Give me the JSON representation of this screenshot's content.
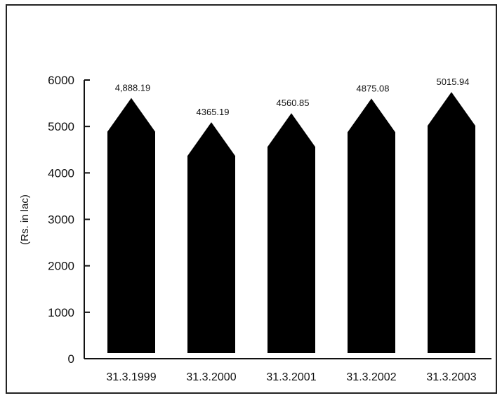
{
  "chart_data": {
    "type": "bar",
    "bar_shape": "arrow",
    "categories": [
      "31.3.1999",
      "31.3.2000",
      "31.3.2001",
      "31.3.2002",
      "31.3.2003"
    ],
    "values": [
      4888.19,
      4365.19,
      4560.85,
      4875.08,
      5015.94
    ],
    "value_labels": [
      "4,888.19",
      "4365.19",
      "4560.85",
      "4875.08",
      "5015.94"
    ],
    "title": "",
    "xlabel": "",
    "ylabel": "(Rs. in lac)",
    "ylim": [
      0,
      6000
    ],
    "yticks": [
      0,
      1000,
      2000,
      3000,
      4000,
      5000,
      6000
    ],
    "grid": false,
    "bar_color": "#000000"
  }
}
